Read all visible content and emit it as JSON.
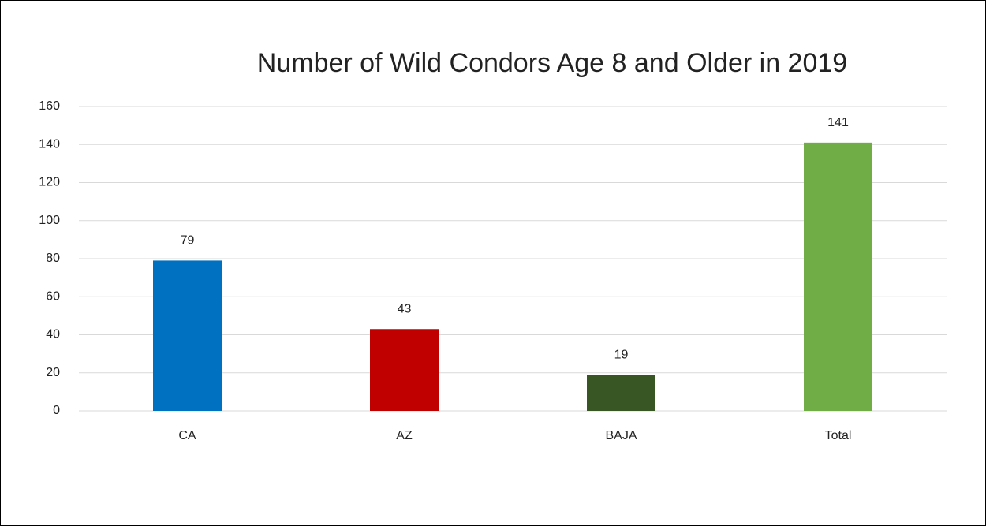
{
  "chart_data": {
    "type": "bar",
    "title": "Number of Wild Condors Age 8 and Older in 2019",
    "categories": [
      "CA",
      "AZ",
      "BAJA",
      "Total"
    ],
    "values": [
      79,
      43,
      19,
      141
    ],
    "colors": [
      "#0070c0",
      "#c00000",
      "#375623",
      "#70ad47"
    ],
    "ylim": [
      0,
      160
    ],
    "yticks": [
      0,
      20,
      40,
      60,
      80,
      100,
      120,
      140,
      160
    ],
    "grid": true
  }
}
